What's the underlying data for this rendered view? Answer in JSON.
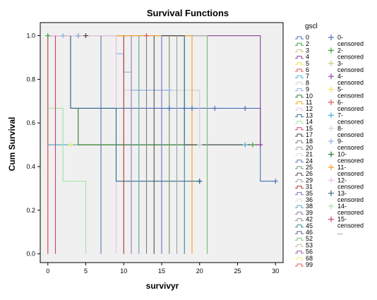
{
  "chart_data": {
    "type": "line",
    "title": "Survival Functions",
    "xlabel": "survivyr",
    "ylabel": "Cum Survival",
    "xlim": [
      -1,
      31
    ],
    "ylim": [
      -0.04,
      1.06
    ],
    "xticks": [
      "0",
      "5",
      "10",
      "15",
      "20",
      "25",
      "30"
    ],
    "yticks": [
      "0.0",
      "0.2",
      "0.4",
      "0.6",
      "0.8",
      "1.0"
    ],
    "grid": false,
    "legend_title": "gscl",
    "legend_placement": "right",
    "legend": [
      {
        "name": "0",
        "color": "#4a6fb5",
        "marker": "line"
      },
      {
        "name": "2",
        "color": "#3aa03a",
        "marker": "line"
      },
      {
        "name": "3",
        "color": "#c8c87a",
        "marker": "line"
      },
      {
        "name": "4",
        "color": "#8e3f9e",
        "marker": "line"
      },
      {
        "name": "5",
        "color": "#f0e050",
        "marker": "line"
      },
      {
        "name": "6",
        "color": "#e05050",
        "marker": "line"
      },
      {
        "name": "7",
        "color": "#4ab0d8",
        "marker": "line"
      },
      {
        "name": "8",
        "color": "#d0d0d0",
        "marker": "line"
      },
      {
        "name": "9",
        "color": "#90b0e0",
        "marker": "line"
      },
      {
        "name": "10",
        "color": "#2e7a2e",
        "marker": "line"
      },
      {
        "name": "11",
        "color": "#f0a020",
        "marker": "line"
      },
      {
        "name": "12",
        "color": "#e8c0e8",
        "marker": "line"
      },
      {
        "name": "13",
        "color": "#2e6a8a",
        "marker": "line"
      },
      {
        "name": "14",
        "color": "#a8e0a8",
        "marker": "line"
      },
      {
        "name": "15",
        "color": "#d04070",
        "marker": "line"
      },
      {
        "name": "17",
        "color": "#404040",
        "marker": "line"
      },
      {
        "name": "18",
        "color": "#808080",
        "marker": "line"
      },
      {
        "name": "20",
        "color": "#a8a8a8",
        "marker": "line"
      },
      {
        "name": "21",
        "color": "#ffffff",
        "marker": "line"
      },
      {
        "name": "24",
        "color": "#5a7ab0",
        "marker": "line"
      },
      {
        "name": "25",
        "color": "#6a9a6a",
        "marker": "line"
      },
      {
        "name": "26",
        "color": "#505050",
        "marker": "line"
      },
      {
        "name": "29",
        "color": "#a0a0a0",
        "marker": "line"
      },
      {
        "name": "31",
        "color": "#b03030",
        "marker": "line"
      },
      {
        "name": "35",
        "color": "#7070c0",
        "marker": "line"
      },
      {
        "name": "36",
        "color": "#ffffff",
        "marker": "line"
      },
      {
        "name": "38",
        "color": "#60a0c0",
        "marker": "line"
      },
      {
        "name": "39",
        "color": "#9a7ab0",
        "marker": "line"
      },
      {
        "name": "42",
        "color": "#909090",
        "marker": "line"
      },
      {
        "name": "45",
        "color": "#3a8a8a",
        "marker": "line"
      },
      {
        "name": "46",
        "color": "#5a5a9a",
        "marker": "line"
      },
      {
        "name": "52",
        "color": "#7ac07a",
        "marker": "line"
      },
      {
        "name": "53",
        "color": "#c0c0a0",
        "marker": "line"
      },
      {
        "name": "56",
        "color": "#9a5aaa",
        "marker": "line"
      },
      {
        "name": "68",
        "color": "#f0f080",
        "marker": "line"
      },
      {
        "name": "99",
        "color": "#e06060",
        "marker": "line"
      },
      {
        "name": "0-censored",
        "color": "#4a6fb5",
        "marker": "plus"
      },
      {
        "name": "2-censored",
        "color": "#3aa03a",
        "marker": "plus"
      },
      {
        "name": "3-censored",
        "color": "#c8c87a",
        "marker": "plus"
      },
      {
        "name": "4-censored",
        "color": "#8e3f9e",
        "marker": "plus"
      },
      {
        "name": "5-censored",
        "color": "#f0e050",
        "marker": "plus"
      },
      {
        "name": "6-censored",
        "color": "#e05050",
        "marker": "plus"
      },
      {
        "name": "7-censored",
        "color": "#4ab0d8",
        "marker": "plus"
      },
      {
        "name": "8-censored",
        "color": "#d0d0d0",
        "marker": "plus"
      },
      {
        "name": "9-censored",
        "color": "#90b0e0",
        "marker": "plus"
      },
      {
        "name": "10-censored",
        "color": "#2e7a2e",
        "marker": "plus"
      },
      {
        "name": "11-censored",
        "color": "#f0a020",
        "marker": "plus"
      },
      {
        "name": "12-censored",
        "color": "#e8c0e8",
        "marker": "plus"
      },
      {
        "name": "13-censored",
        "color": "#2e6a8a",
        "marker": "plus"
      },
      {
        "name": "14-censored",
        "color": "#a8e0a8",
        "marker": "plus"
      },
      {
        "name": "15-censored",
        "color": "#d04070",
        "marker": "plus"
      },
      {
        "name": "...",
        "color": "#000000",
        "marker": "none"
      }
    ],
    "series": [
      {
        "color": "#4a6fb5",
        "steps": [
          [
            0,
            1
          ],
          [
            3,
            0.667
          ],
          [
            28,
            0.333
          ],
          [
            30,
            0.333
          ]
        ],
        "censored": [
          [
            16,
            0.667
          ],
          [
            18,
            0.667
          ],
          [
            19,
            0.667
          ],
          [
            22,
            0.667
          ],
          [
            26,
            0.667
          ],
          [
            30,
            0.333
          ]
        ]
      },
      {
        "color": "#3aa03a",
        "steps": [
          [
            0,
            1
          ],
          [
            0,
            0.5
          ],
          [
            27,
            0.5
          ]
        ],
        "censored": [
          [
            0,
            1
          ],
          [
            27,
            0.5
          ]
        ]
      },
      {
        "color": "#c8c87a",
        "steps": [
          [
            0,
            1
          ],
          [
            1,
            0.5
          ],
          [
            25,
            0.5
          ]
        ],
        "censored": [
          [
            26,
            0.5
          ]
        ]
      },
      {
        "color": "#8e3f9e",
        "steps": [
          [
            0,
            1
          ],
          [
            28,
            1
          ],
          [
            28,
            0.5
          ]
        ],
        "censored": [
          [
            4,
            1
          ],
          [
            28,
            0.5
          ]
        ]
      },
      {
        "color": "#f0e050",
        "steps": [
          [
            0,
            0.5
          ],
          [
            3,
            0.5
          ],
          [
            9,
            1
          ],
          [
            12,
            1
          ],
          [
            12,
            0
          ]
        ],
        "censored": [
          [
            3,
            0.5
          ]
        ]
      },
      {
        "color": "#e05050",
        "steps": [
          [
            0,
            1
          ],
          [
            0,
            0
          ]
        ],
        "censored": [
          [
            13,
            1
          ]
        ]
      },
      {
        "color": "#4ab0d8",
        "steps": [
          [
            0,
            0.5
          ],
          [
            26,
            0.5
          ]
        ],
        "censored": [
          [
            26,
            0.5
          ]
        ]
      },
      {
        "color": "#d0d0d0",
        "steps": [
          [
            10,
            0.75
          ],
          [
            20,
            0.75
          ],
          [
            20,
            0.5
          ]
        ],
        "censored": [
          [
            20,
            0.5
          ]
        ]
      },
      {
        "color": "#90b0e0",
        "steps": [
          [
            9,
            1
          ],
          [
            9,
            0.917
          ],
          [
            10,
            0.917
          ],
          [
            10,
            0.833
          ],
          [
            11,
            0.833
          ],
          [
            11,
            0.75
          ],
          [
            16,
            0.75
          ]
        ],
        "censored": [
          [
            16,
            0.75
          ],
          [
            4,
            1
          ],
          [
            2,
            1
          ]
        ]
      },
      {
        "color": "#2e7a2e",
        "steps": [
          [
            4,
            0.667
          ],
          [
            4,
            0.5
          ],
          [
            20,
            0.5
          ]
        ],
        "censored": [
          [
            20,
            0.333
          ]
        ]
      },
      {
        "color": "#f0a020",
        "steps": [
          [
            0,
            1
          ],
          [
            19,
            1
          ],
          [
            19,
            0
          ]
        ],
        "censored": []
      },
      {
        "color": "#e8c0e8",
        "steps": [
          [
            0,
            1
          ],
          [
            9,
            1
          ],
          [
            9,
            0
          ]
        ],
        "censored": []
      },
      {
        "color": "#2e6a8a",
        "steps": [
          [
            3,
            1
          ],
          [
            3,
            0.667
          ],
          [
            9,
            0.667
          ],
          [
            9,
            0.333
          ],
          [
            20,
            0.333
          ]
        ],
        "censored": [
          [
            20,
            0.333
          ]
        ]
      },
      {
        "color": "#a8e0a8",
        "steps": [
          [
            0,
            0.667
          ],
          [
            2,
            0.667
          ],
          [
            2,
            0.333
          ],
          [
            5,
            0.333
          ],
          [
            5,
            0
          ]
        ],
        "censored": []
      },
      {
        "color": "#d04070",
        "steps": [
          [
            1,
            1
          ],
          [
            1,
            0
          ]
        ],
        "censored": []
      },
      {
        "color": "#404040",
        "steps": [
          [
            15,
            1
          ],
          [
            18,
            1
          ],
          [
            18,
            0.5
          ],
          [
            28,
            0.5
          ]
        ],
        "censored": [
          [
            5,
            1
          ]
        ]
      },
      {
        "color": "#808080",
        "steps": [
          [
            13,
            1
          ],
          [
            13,
            0
          ]
        ],
        "censored": []
      },
      {
        "color": "#a8a8a8",
        "steps": [
          [
            19,
            1
          ],
          [
            21,
            1
          ],
          [
            21,
            0
          ]
        ],
        "censored": []
      },
      {
        "color": "#5a7ab0",
        "steps": [
          [
            7,
            1
          ],
          [
            7,
            0
          ]
        ],
        "censored": []
      },
      {
        "color": "#6a9a6a",
        "steps": [
          [
            16,
            1
          ],
          [
            16,
            0
          ]
        ],
        "censored": []
      },
      {
        "color": "#505050",
        "steps": [
          [
            14,
            1
          ],
          [
            14,
            0
          ]
        ],
        "censored": []
      },
      {
        "color": "#a0a0a0",
        "steps": [
          [
            17,
            1
          ],
          [
            17,
            0
          ]
        ],
        "censored": []
      },
      {
        "color": "#b03030",
        "steps": [
          [
            10,
            1
          ],
          [
            10,
            0
          ]
        ],
        "censored": []
      },
      {
        "color": "#7070c0",
        "steps": [
          [
            15,
            1
          ],
          [
            15,
            0
          ]
        ],
        "censored": []
      },
      {
        "color": "#60a0c0",
        "steps": [
          [
            12,
            1
          ],
          [
            12,
            0
          ]
        ],
        "censored": []
      },
      {
        "color": "#9a7ab0",
        "steps": [
          [
            11,
            1
          ],
          [
            11,
            0
          ]
        ],
        "censored": []
      },
      {
        "color": "#3a8a8a",
        "steps": [
          [
            18,
            1
          ],
          [
            18,
            0
          ]
        ],
        "censored": []
      },
      {
        "color": "#7ac07a",
        "steps": [
          [
            21,
            1
          ],
          [
            21,
            0
          ]
        ],
        "censored": []
      },
      {
        "color": "#e06060",
        "steps": [
          [
            0,
            0.5
          ],
          [
            0,
            0
          ]
        ],
        "censored": []
      }
    ]
  }
}
